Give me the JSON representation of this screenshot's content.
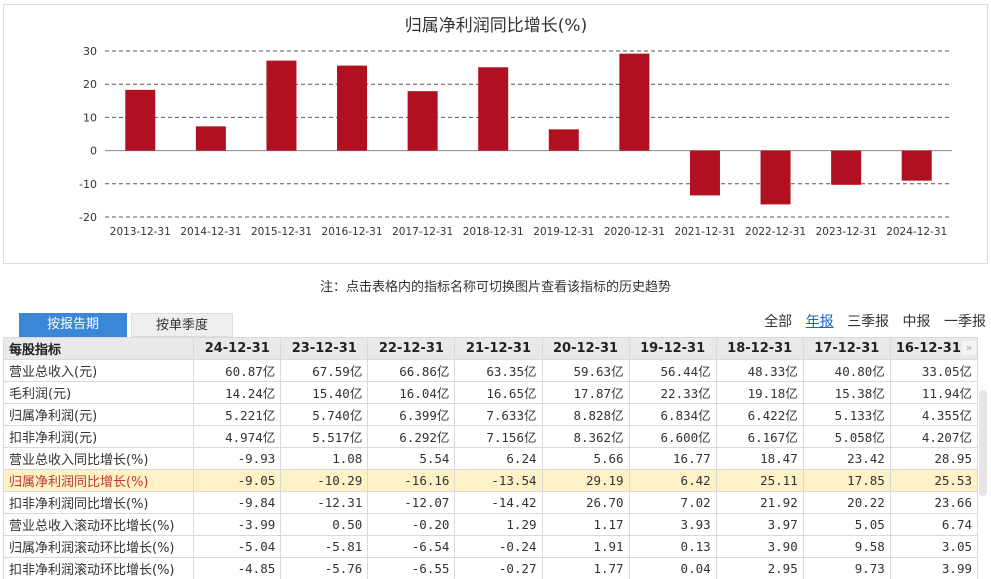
{
  "chart_data": {
    "type": "bar",
    "title": "归属净利润同比增长(%)",
    "categories": [
      "2013-12-31",
      "2014-12-31",
      "2015-12-31",
      "2016-12-31",
      "2017-12-31",
      "2018-12-31",
      "2019-12-31",
      "2020-12-31",
      "2021-12-31",
      "2022-12-31",
      "2023-12-31",
      "2024-12-31"
    ],
    "values": [
      18.3,
      7.3,
      27.1,
      25.6,
      17.9,
      25.1,
      6.4,
      29.2,
      -13.5,
      -16.2,
      -10.3,
      -9.05
    ],
    "ylim": [
      -20,
      30
    ],
    "yticks": [
      -20,
      -10,
      0,
      10,
      20,
      30
    ],
    "grid": true,
    "bar_color": "#b0101f"
  },
  "note": "注：点击表格内的指标名称可切换图片查看该指标的历史趋势",
  "tabs": [
    {
      "label": "按报告期",
      "active": true
    },
    {
      "label": "按单季度",
      "active": false
    }
  ],
  "period_links": [
    {
      "label": "全部",
      "active": false
    },
    {
      "label": "年报",
      "active": true
    },
    {
      "label": "三季报",
      "active": false
    },
    {
      "label": "中报",
      "active": false
    },
    {
      "label": "一季报",
      "active": false
    }
  ],
  "table": {
    "header_label": "每股指标",
    "dates": [
      "24-12-31",
      "23-12-31",
      "22-12-31",
      "21-12-31",
      "20-12-31",
      "19-12-31",
      "18-12-31",
      "17-12-31",
      "16-12-31"
    ],
    "scroll_glyph": "»",
    "rows": [
      {
        "label": "营业总收入(元)",
        "values": [
          "60.87亿",
          "67.59亿",
          "66.86亿",
          "63.35亿",
          "59.63亿",
          "56.44亿",
          "48.33亿",
          "40.80亿",
          "33.05亿"
        ]
      },
      {
        "label": "毛利润(元)",
        "values": [
          "14.24亿",
          "15.40亿",
          "16.04亿",
          "16.65亿",
          "17.87亿",
          "22.33亿",
          "19.18亿",
          "15.38亿",
          "11.94亿"
        ]
      },
      {
        "label": "归属净利润(元)",
        "values": [
          "5.221亿",
          "5.740亿",
          "6.399亿",
          "7.633亿",
          "8.828亿",
          "6.834亿",
          "6.422亿",
          "5.133亿",
          "4.355亿"
        ]
      },
      {
        "label": "扣非净利润(元)",
        "values": [
          "4.974亿",
          "5.517亿",
          "6.292亿",
          "7.156亿",
          "8.362亿",
          "6.600亿",
          "6.167亿",
          "5.058亿",
          "4.207亿"
        ]
      },
      {
        "label": "营业总收入同比增长(%)",
        "values": [
          "-9.93",
          "1.08",
          "5.54",
          "6.24",
          "5.66",
          "16.77",
          "18.47",
          "23.42",
          "28.95"
        ]
      },
      {
        "label": "归属净利润同比增长(%)",
        "values": [
          "-9.05",
          "-10.29",
          "-16.16",
          "-13.54",
          "29.19",
          "6.42",
          "25.11",
          "17.85",
          "25.53"
        ],
        "highlight": true
      },
      {
        "label": "扣非净利润同比增长(%)",
        "values": [
          "-9.84",
          "-12.31",
          "-12.07",
          "-14.42",
          "26.70",
          "7.02",
          "21.92",
          "20.22",
          "23.66"
        ]
      },
      {
        "label": "营业总收入滚动环比增长(%)",
        "values": [
          "-3.99",
          "0.50",
          "-0.20",
          "1.29",
          "1.17",
          "3.93",
          "3.97",
          "5.05",
          "6.74"
        ]
      },
      {
        "label": "归属净利润滚动环比增长(%)",
        "values": [
          "-5.04",
          "-5.81",
          "-6.54",
          "-0.24",
          "1.91",
          "0.13",
          "3.90",
          "9.58",
          "3.05"
        ]
      },
      {
        "label": "扣非净利润滚动环比增长(%)",
        "values": [
          "-4.85",
          "-5.76",
          "-6.55",
          "-0.27",
          "1.77",
          "0.04",
          "2.95",
          "9.73",
          "3.99"
        ]
      }
    ]
  }
}
